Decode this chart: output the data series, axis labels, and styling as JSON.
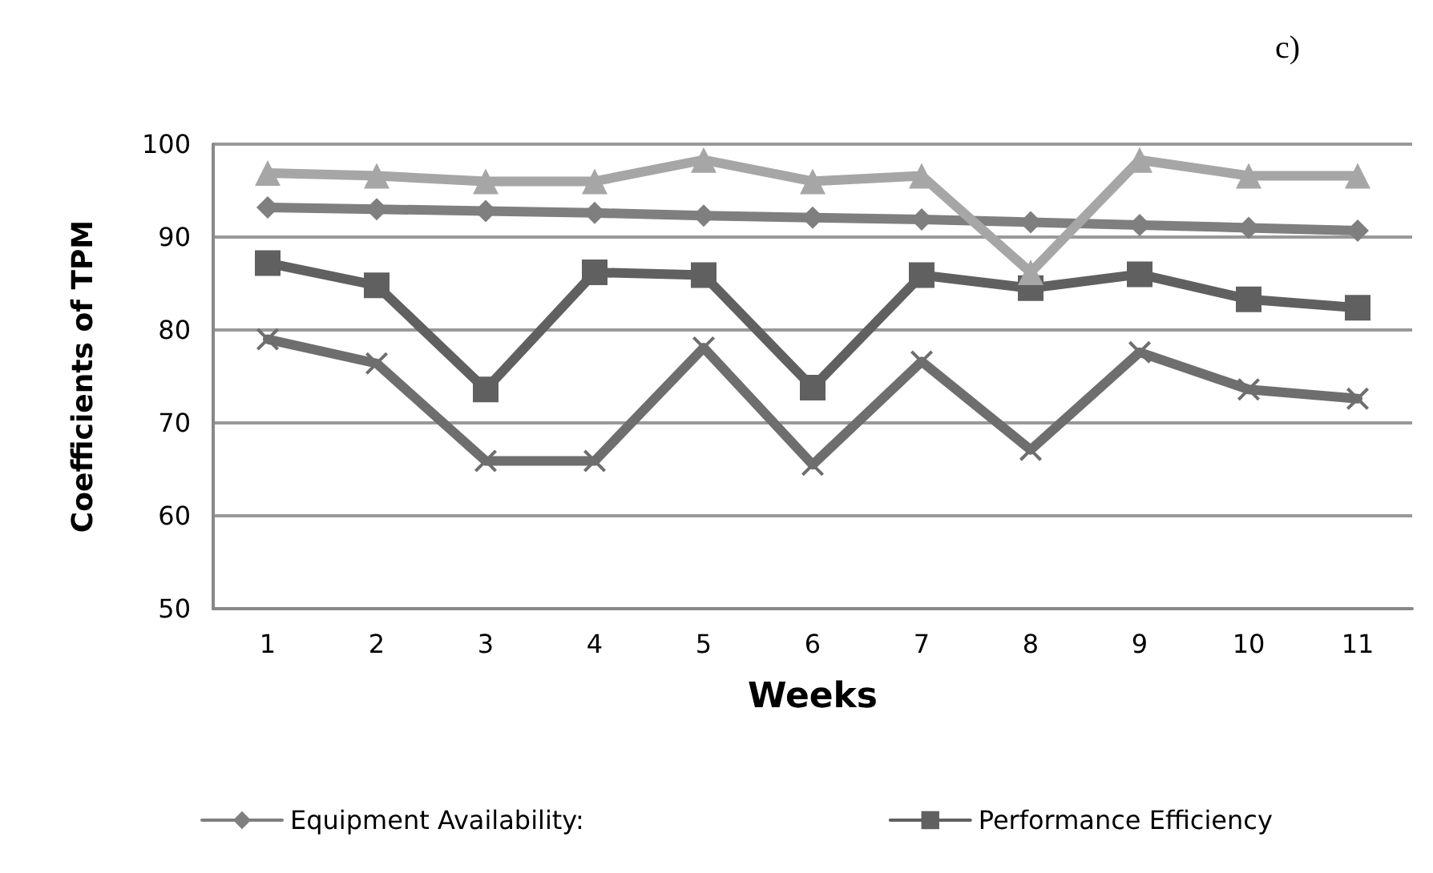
{
  "chart_data": {
    "type": "line",
    "xlabel": "Weeks",
    "ylabel": "Coefficients of TPM",
    "annotations": [
      "c)"
    ],
    "categories": [
      "1",
      "2",
      "3",
      "4",
      "5",
      "6",
      "7",
      "8",
      "9",
      "10",
      "11"
    ],
    "series": [
      {
        "name": "Equipment Availability:",
        "color": "#7f7f7f",
        "marker": "diamond",
        "values": [
          93.2,
          93.0,
          92.8,
          92.6,
          92.3,
          92.1,
          91.9,
          91.6,
          91.3,
          91.0,
          90.7
        ]
      },
      {
        "name": "Performance Efficiency",
        "color": "#606060",
        "marker": "square",
        "values": [
          87.2,
          84.8,
          73.6,
          86.2,
          85.9,
          73.8,
          85.9,
          84.5,
          86.0,
          83.3,
          82.4
        ]
      },
      {
        "color": "#a6a6a6",
        "marker": "triangle",
        "values": [
          96.9,
          96.6,
          96.0,
          96.0,
          98.3,
          96.0,
          96.6,
          86.2,
          98.3,
          96.6,
          96.6
        ]
      },
      {
        "color": "#6e6e6e",
        "marker": "cross",
        "values": [
          79.0,
          76.4,
          65.9,
          65.9,
          78.1,
          65.5,
          76.6,
          67.1,
          77.6,
          73.6,
          72.6
        ]
      }
    ],
    "ylim": [
      50,
      100
    ],
    "yticks": [
      50,
      60,
      70,
      80,
      90,
      100
    ],
    "grid": "y",
    "legend": "bottom",
    "line_style": "solid"
  }
}
